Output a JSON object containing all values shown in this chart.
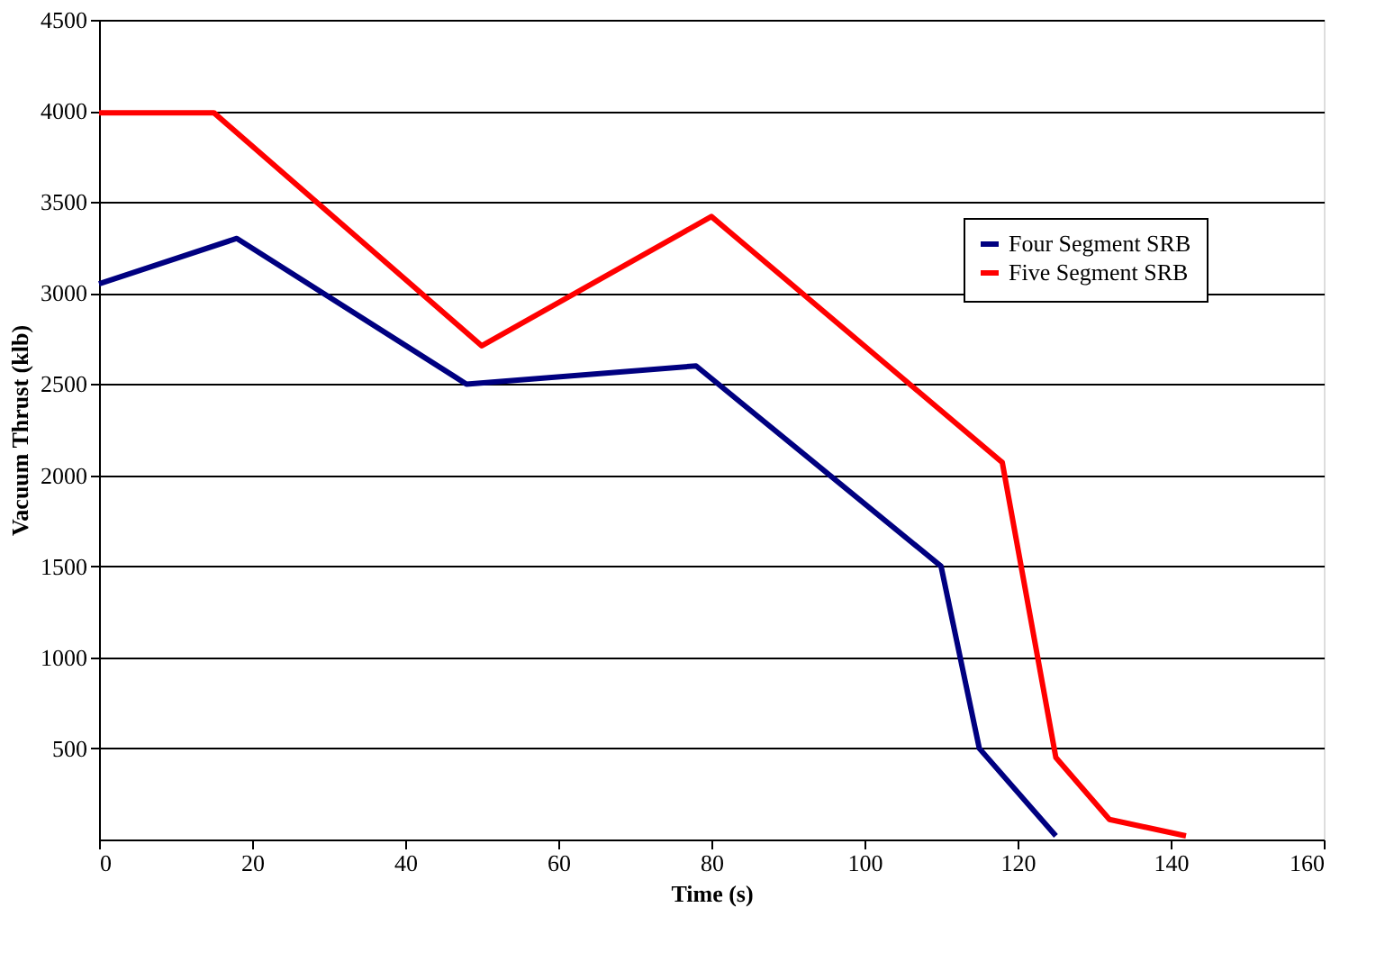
{
  "chart_data": {
    "type": "line",
    "xlabel": "Time (s)",
    "ylabel": "Vacuum Thrust (klb)",
    "xlim": [
      0,
      160
    ],
    "xticks": [
      0,
      20,
      40,
      60,
      80,
      100,
      120,
      140,
      160
    ],
    "ylim": [
      0,
      4500
    ],
    "yticks": [
      500,
      1000,
      1500,
      2000,
      2500,
      3000,
      3500,
      4000,
      4500
    ],
    "grid": "y",
    "legend": "top right",
    "marker": "none",
    "line_style": "solid",
    "series": [
      {
        "name": "Four Segment SRB",
        "color": "#000080",
        "x": [
          0,
          18,
          48,
          78,
          110,
          115,
          125
        ],
        "values": [
          3050,
          3300,
          2500,
          2600,
          1500,
          500,
          20
        ]
      },
      {
        "name": "Five Segment SRB",
        "color": "#ff0000",
        "x": [
          0,
          15,
          50,
          80,
          118,
          125,
          132,
          142
        ],
        "values": [
          3990,
          3990,
          2710,
          3420,
          2070,
          450,
          110,
          20
        ]
      }
    ]
  }
}
